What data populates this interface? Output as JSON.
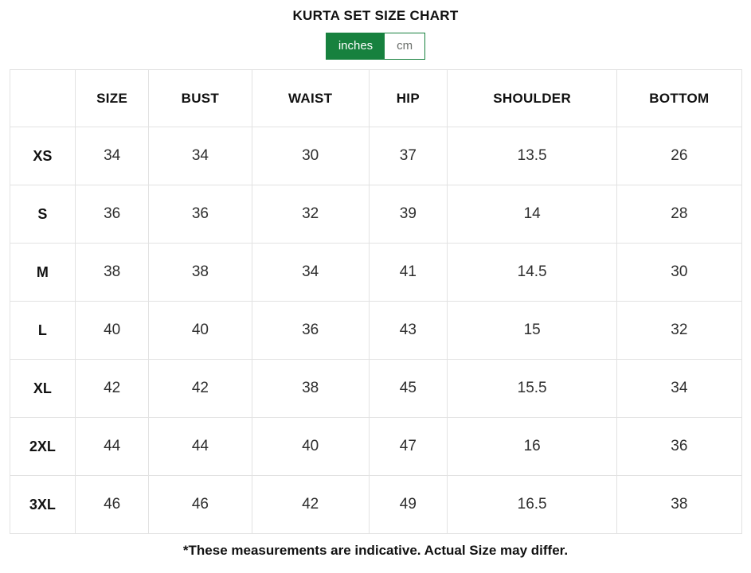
{
  "page": {
    "title": "KURTA SET SIZE CHART",
    "footnote": "*These measurements are indicative. Actual Size may differ."
  },
  "unit_toggle": {
    "selected": "inches",
    "options": [
      {
        "label": "inches",
        "selected": true
      },
      {
        "label": "cm",
        "selected": false
      }
    ]
  },
  "colors": {
    "accent_green": "#17813e",
    "table_border": "#e2e2e2",
    "inactive_unit_text": "#6b6f6b"
  },
  "chart_data": {
    "type": "table",
    "unit": "inches",
    "columns": [
      "",
      "SIZE",
      "BUST",
      "WAIST",
      "HIP",
      "SHOULDER",
      "BOTTOM"
    ],
    "rows": [
      {
        "label": "XS",
        "values": [
          "34",
          "34",
          "30",
          "37",
          "13.5",
          "26"
        ]
      },
      {
        "label": "S",
        "values": [
          "36",
          "36",
          "32",
          "39",
          "14",
          "28"
        ]
      },
      {
        "label": "M",
        "values": [
          "38",
          "38",
          "34",
          "41",
          "14.5",
          "30"
        ]
      },
      {
        "label": "L",
        "values": [
          "40",
          "40",
          "36",
          "43",
          "15",
          "32"
        ]
      },
      {
        "label": "XL",
        "values": [
          "42",
          "42",
          "38",
          "45",
          "15.5",
          "34"
        ]
      },
      {
        "label": "2XL",
        "values": [
          "44",
          "44",
          "40",
          "47",
          "16",
          "36"
        ]
      },
      {
        "label": "3XL",
        "values": [
          "46",
          "46",
          "42",
          "49",
          "16.5",
          "38"
        ]
      }
    ]
  }
}
